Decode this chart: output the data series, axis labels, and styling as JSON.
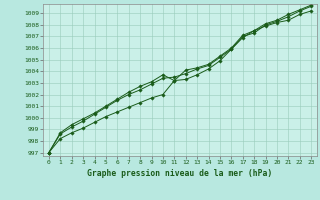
{
  "title": "Graphe pression niveau de la mer (hPa)",
  "background_color": "#b8e8e0",
  "plot_bg_color": "#caf0e8",
  "grid_color": "#99ccbb",
  "line_color": "#1a5c1a",
  "marker_color": "#1a5c1a",
  "xlim": [
    -0.5,
    23.5
  ],
  "ylim": [
    996.7,
    1009.8
  ],
  "xticks": [
    0,
    1,
    2,
    3,
    4,
    5,
    6,
    7,
    8,
    9,
    10,
    11,
    12,
    13,
    14,
    15,
    16,
    17,
    18,
    19,
    20,
    21,
    22,
    23
  ],
  "yticks": [
    997,
    998,
    999,
    1000,
    1001,
    1002,
    1003,
    1004,
    1005,
    1006,
    1007,
    1008,
    1009
  ],
  "series1": [
    997.0,
    998.2,
    998.7,
    999.1,
    999.6,
    1000.1,
    1000.5,
    1000.9,
    1001.3,
    1001.7,
    1002.0,
    1003.2,
    1003.3,
    1003.7,
    1004.2,
    1004.9,
    1005.9,
    1006.9,
    1007.5,
    1007.9,
    1008.2,
    1008.4,
    1008.9,
    1009.2
  ],
  "series2": [
    997.0,
    998.6,
    999.2,
    999.7,
    1000.3,
    1000.9,
    1001.5,
    1002.0,
    1002.4,
    1002.9,
    1003.4,
    1003.5,
    1003.8,
    1004.2,
    1004.5,
    1005.2,
    1005.9,
    1007.0,
    1007.3,
    1008.0,
    1008.3,
    1008.7,
    1009.2,
    1009.6
  ],
  "series3": [
    997.0,
    998.7,
    999.4,
    999.9,
    1000.4,
    1001.0,
    1001.6,
    1002.2,
    1002.7,
    1003.1,
    1003.7,
    1003.2,
    1004.1,
    1004.3,
    1004.6,
    1005.3,
    1006.0,
    1007.1,
    1007.5,
    1008.1,
    1008.4,
    1008.9,
    1009.3,
    1009.7
  ]
}
